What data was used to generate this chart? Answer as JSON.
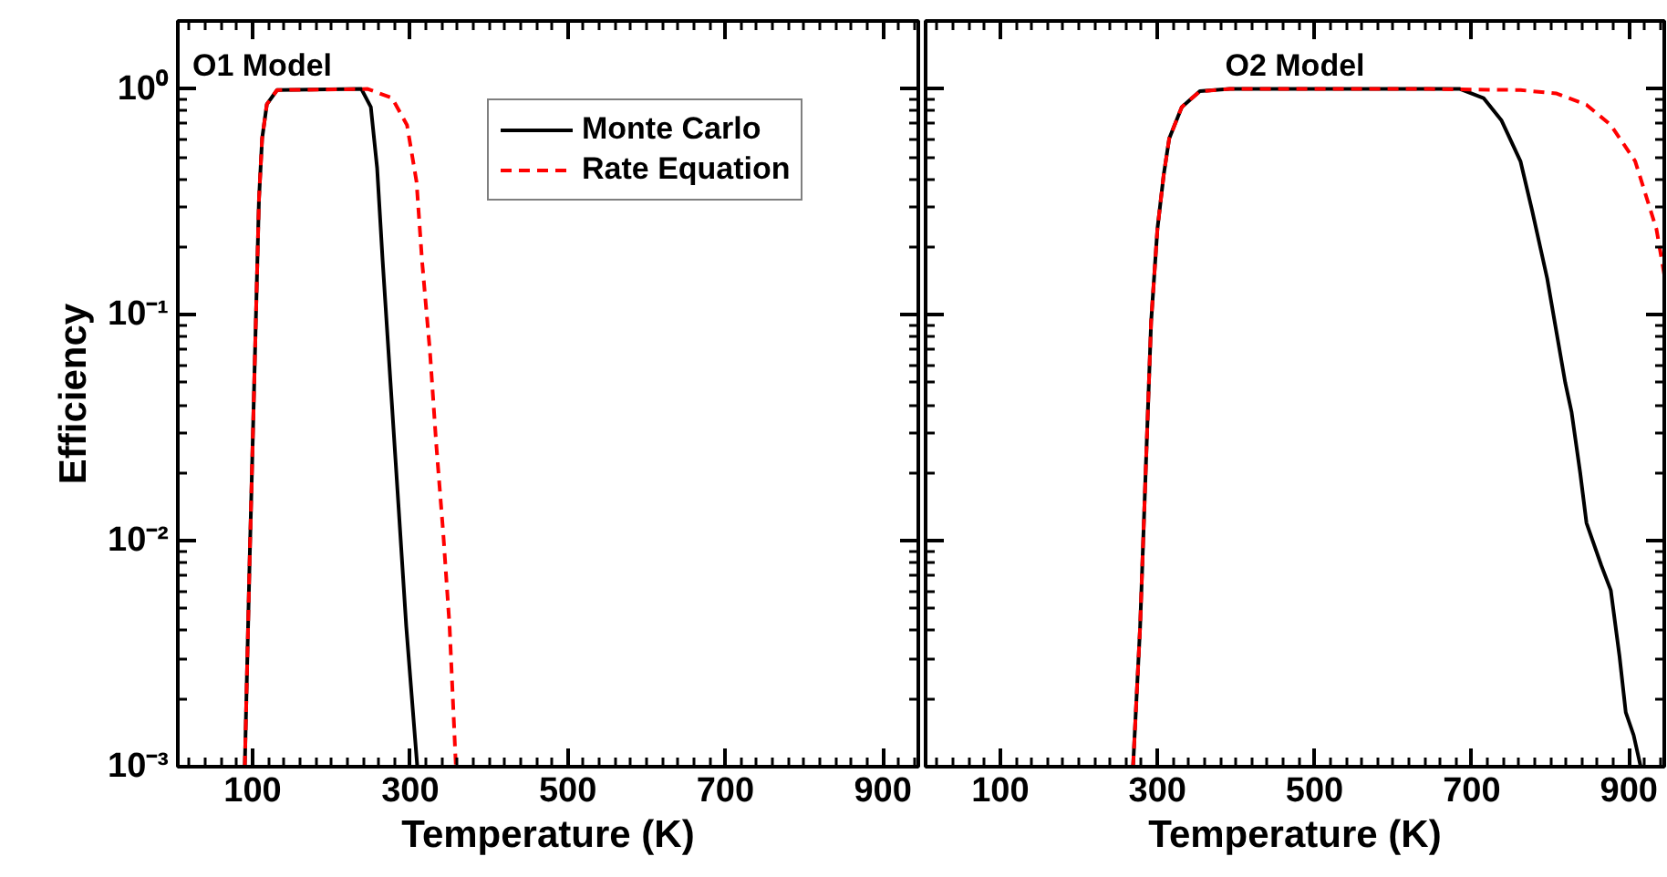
{
  "chart_data": [
    {
      "type": "line",
      "title": "O1 Model",
      "xlabel": "Temperature (K)",
      "ylabel": "Efficiency",
      "log": "y",
      "legend": "top right",
      "grid": false,
      "xlim": [
        5,
        945
      ],
      "xticks": [
        100,
        300,
        500,
        700,
        900
      ],
      "ylim": [
        0.001,
        2
      ],
      "yticks": [
        {
          "value": 1,
          "label": "10⁰"
        },
        {
          "value": 0.1,
          "label": "10⁻¹"
        },
        {
          "value": 0.01,
          "label": "10⁻²"
        },
        {
          "value": 0.001,
          "label": "10⁻³"
        }
      ],
      "series": [
        {
          "name": "Monte Carlo",
          "color": "#000000",
          "line_style": "solid",
          "x": [
            90,
            96,
            102,
            108,
            112,
            118,
            131,
            238,
            250,
            258,
            265,
            275,
            285,
            295,
            304,
            309
          ],
          "values": [
            0.001,
            0.00776,
            0.0501,
            0.324,
            0.603,
            0.855,
            0.989,
            1,
            0.832,
            0.447,
            0.174,
            0.0501,
            0.0145,
            0.00417,
            0.00166,
            0.001
          ]
        },
        {
          "name": "Rate Equation",
          "color": "#ff0000",
          "line_style": "dashed",
          "x": [
            90,
            96,
            102,
            108,
            112,
            118,
            131,
            246,
            277,
            296,
            308,
            315,
            325,
            333,
            342,
            350,
            358
          ],
          "values": [
            0.001,
            0.00776,
            0.0501,
            0.324,
            0.603,
            0.855,
            0.989,
            1,
            0.912,
            0.692,
            0.389,
            0.174,
            0.0692,
            0.0269,
            0.0107,
            0.00417,
            0.001
          ]
        }
      ]
    },
    {
      "type": "line",
      "title": "O2 Model",
      "xlabel": "Temperature (K)",
      "log": "y",
      "tick_labels": "x",
      "grid": false,
      "xlim": [
        5,
        945
      ],
      "xticks": [
        100,
        300,
        500,
        700,
        900
      ],
      "ylim": [
        0.001,
        2
      ],
      "yticks": [
        {
          "value": 1,
          "label": null
        },
        {
          "value": 0.1,
          "label": null
        },
        {
          "value": 0.01,
          "label": null
        },
        {
          "value": 0.001,
          "label": null
        }
      ],
      "series": [
        {
          "color": "#000000",
          "line_style": "solid",
          "x": [
            269,
            278,
            285,
            292,
            300,
            308,
            315,
            331,
            354,
            392,
            685,
            715,
            738,
            762,
            777,
            796,
            808,
            819,
            827,
            838,
            846,
            865,
            877,
            888,
            896,
            906,
            915
          ],
          "values": [
            0.001,
            0.00417,
            0.02,
            0.0933,
            0.24,
            0.417,
            0.603,
            0.832,
            0.977,
            1,
            1,
            0.912,
            0.724,
            0.479,
            0.288,
            0.145,
            0.0832,
            0.0501,
            0.0372,
            0.02,
            0.012,
            0.00776,
            0.00603,
            0.00309,
            0.00174,
            0.00138,
            0.001
          ]
        },
        {
          "color": "#ff0000",
          "line_style": "dashed",
          "x": [
            269,
            278,
            285,
            292,
            300,
            308,
            315,
            331,
            354,
            392,
            646,
            762,
            808,
            846,
            877,
            908,
            935,
            945
          ],
          "values": [
            0.001,
            0.00417,
            0.02,
            0.0933,
            0.24,
            0.417,
            0.603,
            0.832,
            0.977,
            1,
            1,
            0.989,
            0.955,
            0.851,
            0.692,
            0.479,
            0.24,
            0.151
          ]
        }
      ]
    }
  ]
}
